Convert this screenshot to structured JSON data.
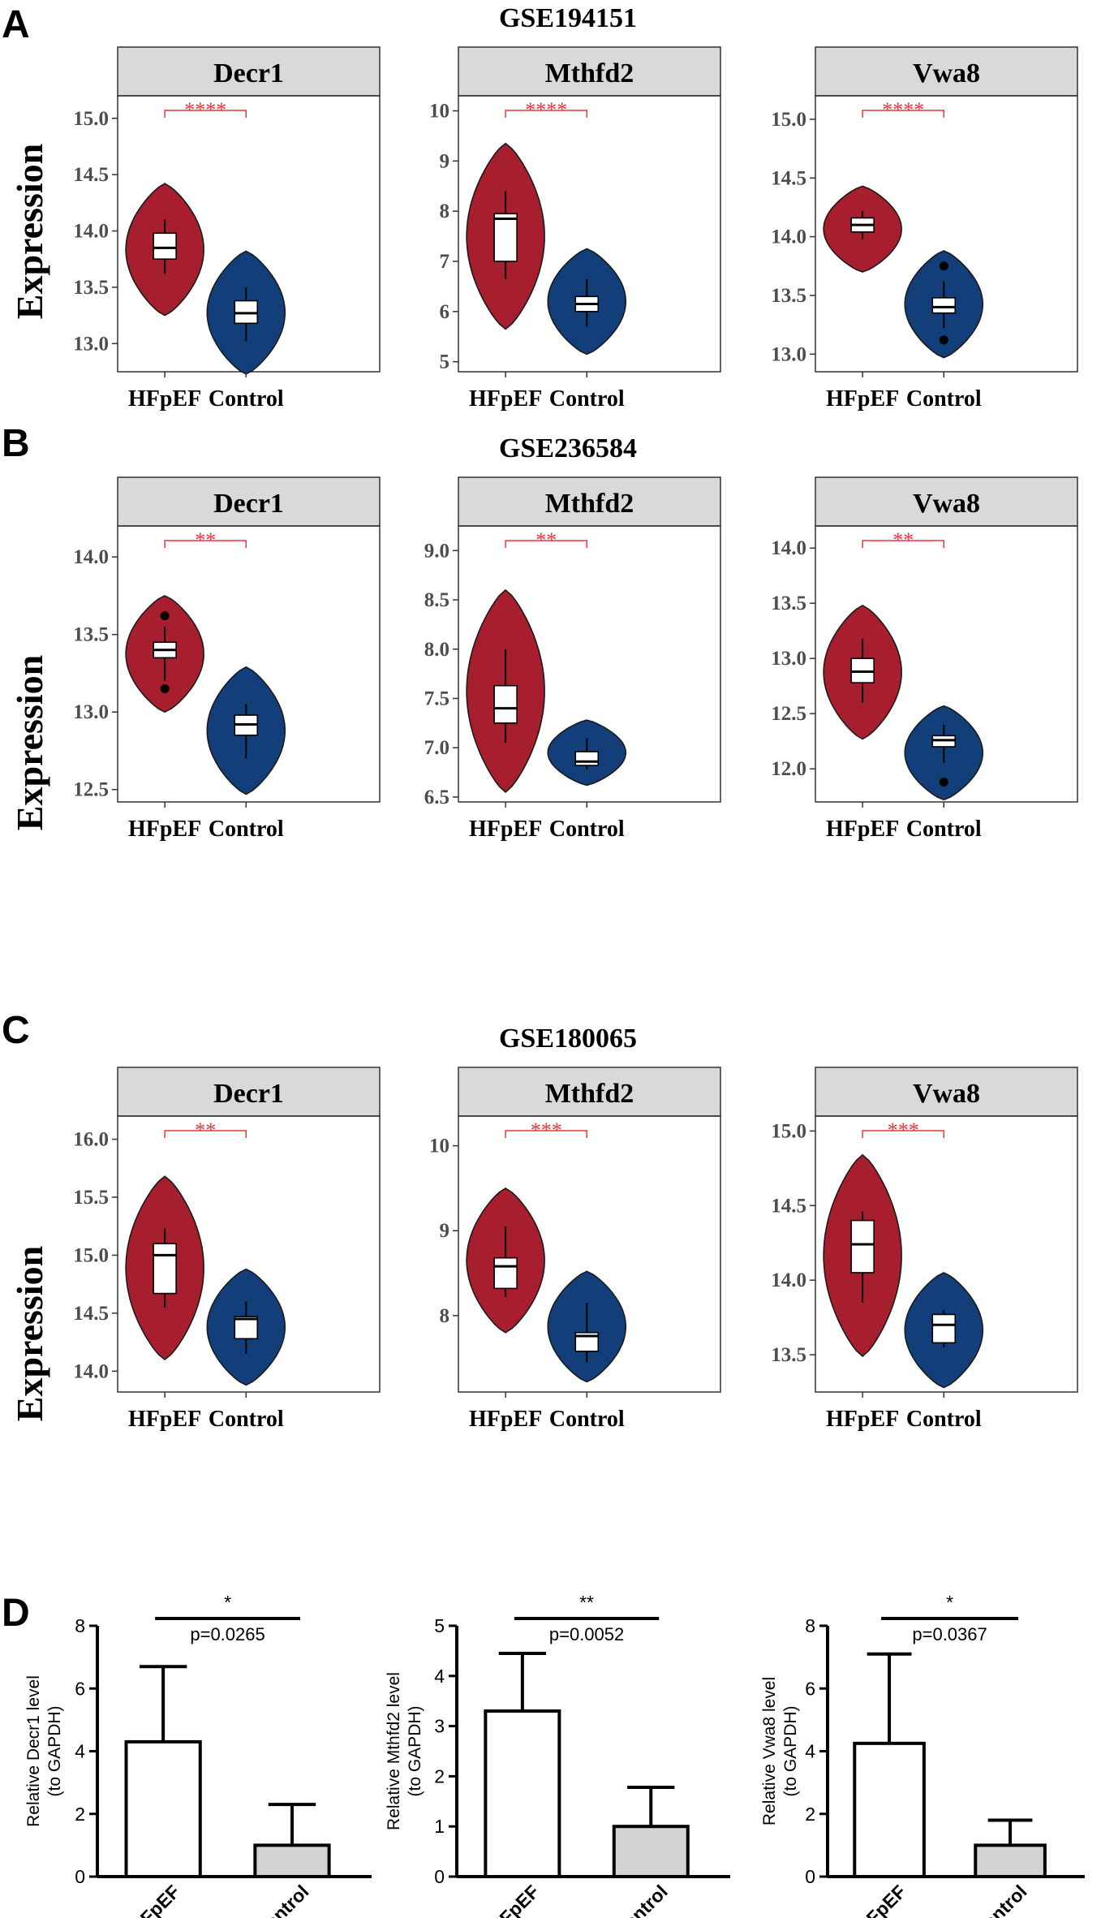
{
  "panel_letters": [
    "A",
    "B",
    "C",
    "D"
  ],
  "rows": [
    {
      "title": "GSE194151",
      "ylabel": "Expression"
    },
    {
      "title": "GSE236584",
      "ylabel": "Expression"
    },
    {
      "title": "GSE180065",
      "ylabel": "Expression"
    }
  ],
  "colors": {
    "hfpef": "#A71E2E",
    "control": "#123F7A",
    "sig": "#E8363A",
    "strip": "#D9D9D9",
    "bar_control": "#D3D3D3"
  },
  "chart_data": [
    {
      "type": "violin",
      "row": 0,
      "title": "Decr1",
      "categories": [
        "HFpEF",
        "Control"
      ],
      "ylim": [
        12.75,
        15.2
      ],
      "yticks": [
        13.0,
        13.5,
        14.0,
        14.5,
        15.0
      ],
      "ytick_labels": [
        "13.0",
        "13.5",
        "14.0",
        "14.5",
        "15.0"
      ],
      "significance": "****",
      "groups": [
        {
          "name": "HFpEF",
          "min": 13.25,
          "max": 14.42,
          "box": [
            13.62,
            13.75,
            13.85,
            13.98,
            14.1
          ],
          "outliers": []
        },
        {
          "name": "Control",
          "min": 12.73,
          "max": 13.82,
          "box": [
            13.02,
            13.18,
            13.27,
            13.38,
            13.5
          ],
          "outliers": []
        }
      ]
    },
    {
      "type": "violin",
      "row": 0,
      "title": "Mthfd2",
      "categories": [
        "HFpEF",
        "Control"
      ],
      "ylim": [
        4.8,
        10.3
      ],
      "yticks": [
        5,
        6,
        7,
        8,
        9,
        10
      ],
      "ytick_labels": [
        "5",
        "6",
        "7",
        "8",
        "9",
        "10"
      ],
      "significance": "****",
      "groups": [
        {
          "name": "HFpEF",
          "min": 5.65,
          "max": 9.35,
          "box": [
            6.65,
            7.0,
            7.85,
            7.95,
            8.4
          ],
          "outliers": []
        },
        {
          "name": "Control",
          "min": 5.15,
          "max": 7.25,
          "box": [
            5.7,
            6.0,
            6.15,
            6.3,
            6.65
          ],
          "outliers": []
        }
      ]
    },
    {
      "type": "violin",
      "row": 0,
      "title": "Vwa8",
      "categories": [
        "HFpEF",
        "Control"
      ],
      "ylim": [
        12.85,
        15.2
      ],
      "yticks": [
        13.0,
        13.5,
        14.0,
        14.5,
        15.0
      ],
      "ytick_labels": [
        "13.0",
        "13.5",
        "14.0",
        "14.5",
        "15.0"
      ],
      "significance": "****",
      "groups": [
        {
          "name": "HFpEF",
          "min": 13.7,
          "max": 14.43,
          "box": [
            13.98,
            14.04,
            14.1,
            14.16,
            14.22
          ],
          "outliers": []
        },
        {
          "name": "Control",
          "min": 12.97,
          "max": 13.88,
          "box": [
            13.22,
            13.35,
            13.4,
            13.48,
            13.62
          ],
          "outliers": [
            13.75,
            13.12
          ]
        }
      ]
    },
    {
      "type": "violin",
      "row": 1,
      "title": "Decr1",
      "categories": [
        "HFpEF",
        "Control"
      ],
      "ylim": [
        12.42,
        14.2
      ],
      "yticks": [
        12.5,
        13.0,
        13.5,
        14.0
      ],
      "ytick_labels": [
        "12.5",
        "13.0",
        "13.5",
        "14.0"
      ],
      "significance": "**",
      "groups": [
        {
          "name": "HFpEF",
          "min": 13.0,
          "max": 13.75,
          "box": [
            13.2,
            13.35,
            13.4,
            13.45,
            13.55
          ],
          "outliers": [
            13.62,
            13.15
          ]
        },
        {
          "name": "Control",
          "min": 12.47,
          "max": 13.29,
          "box": [
            12.7,
            12.85,
            12.92,
            12.98,
            13.05
          ],
          "outliers": []
        }
      ]
    },
    {
      "type": "violin",
      "row": 1,
      "title": "Mthfd2",
      "categories": [
        "HFpEF",
        "Control"
      ],
      "ylim": [
        6.45,
        9.25
      ],
      "yticks": [
        6.5,
        7.0,
        7.5,
        8.0,
        8.5,
        9.0
      ],
      "ytick_labels": [
        "6.5",
        "7.0",
        "7.5",
        "8.0",
        "8.5",
        "9.0"
      ],
      "significance": "**",
      "groups": [
        {
          "name": "HFpEF",
          "min": 6.55,
          "max": 8.6,
          "box": [
            7.05,
            7.25,
            7.4,
            7.63,
            8.0
          ],
          "outliers": []
        },
        {
          "name": "Control",
          "min": 6.62,
          "max": 7.28,
          "box": [
            6.78,
            6.82,
            6.86,
            6.96,
            7.1
          ],
          "outliers": []
        }
      ]
    },
    {
      "type": "violin",
      "row": 1,
      "title": "Vwa8",
      "categories": [
        "HFpEF",
        "Control"
      ],
      "ylim": [
        11.7,
        14.2
      ],
      "yticks": [
        12.0,
        12.5,
        13.0,
        13.5,
        14.0
      ],
      "ytick_labels": [
        "12.0",
        "12.5",
        "13.0",
        "13.5",
        "14.0"
      ],
      "significance": "**",
      "groups": [
        {
          "name": "HFpEF",
          "min": 12.27,
          "max": 13.48,
          "box": [
            12.6,
            12.78,
            12.88,
            13.0,
            13.18
          ],
          "outliers": []
        },
        {
          "name": "Control",
          "min": 11.72,
          "max": 12.57,
          "box": [
            12.05,
            12.2,
            12.26,
            12.3,
            12.4
          ],
          "outliers": [
            11.88
          ]
        }
      ]
    },
    {
      "type": "violin",
      "row": 2,
      "title": "Decr1",
      "categories": [
        "HFpEF",
        "Control"
      ],
      "ylim": [
        13.82,
        16.2
      ],
      "yticks": [
        14.0,
        14.5,
        15.0,
        15.5,
        16.0
      ],
      "ytick_labels": [
        "14.0",
        "14.5",
        "15.0",
        "15.5",
        "16.0"
      ],
      "significance": "**",
      "groups": [
        {
          "name": "HFpEF",
          "min": 14.1,
          "max": 15.68,
          "box": [
            14.55,
            14.67,
            15.0,
            15.1,
            15.23
          ],
          "outliers": []
        },
        {
          "name": "Control",
          "min": 13.88,
          "max": 14.88,
          "box": [
            14.15,
            14.28,
            14.45,
            14.47,
            14.6
          ],
          "outliers": []
        }
      ]
    },
    {
      "type": "violin",
      "row": 2,
      "title": "Mthfd2",
      "categories": [
        "HFpEF",
        "Control"
      ],
      "ylim": [
        7.1,
        10.35
      ],
      "yticks": [
        8,
        9,
        10
      ],
      "ytick_labels": [
        "8",
        "9",
        "10"
      ],
      "significance": "***",
      "groups": [
        {
          "name": "HFpEF",
          "min": 7.8,
          "max": 9.5,
          "box": [
            8.22,
            8.32,
            8.58,
            8.68,
            9.05
          ],
          "outliers": []
        },
        {
          "name": "Control",
          "min": 7.22,
          "max": 8.52,
          "box": [
            7.45,
            7.58,
            7.76,
            7.8,
            8.15
          ],
          "outliers": []
        }
      ]
    },
    {
      "type": "violin",
      "row": 2,
      "title": "Vwa8",
      "categories": [
        "HFpEF",
        "Control"
      ],
      "ylim": [
        13.25,
        15.1
      ],
      "yticks": [
        13.5,
        14.0,
        14.5,
        15.0
      ],
      "ytick_labels": [
        "13.5",
        "14.0",
        "14.5",
        "15.0"
      ],
      "significance": "***",
      "groups": [
        {
          "name": "HFpEF",
          "min": 13.49,
          "max": 14.84,
          "box": [
            13.85,
            14.05,
            14.24,
            14.4,
            14.46
          ],
          "outliers": []
        },
        {
          "name": "Control",
          "min": 13.28,
          "max": 14.05,
          "box": [
            13.55,
            13.58,
            13.7,
            13.77,
            13.8
          ],
          "outliers": []
        }
      ]
    },
    {
      "type": "bar",
      "panel": "D",
      "categories": [
        "HFpEF",
        "Control"
      ],
      "values": [
        4.3,
        1.0
      ],
      "errors": [
        2.4,
        1.3
      ],
      "ylim": [
        0,
        8
      ],
      "yticks": [
        0,
        2,
        4,
        6,
        8
      ],
      "ylabel": [
        "Relative Decr1 level",
        "(to GAPDH)"
      ],
      "significance": "*",
      "pvalue": "p=0.0265"
    },
    {
      "type": "bar",
      "panel": "D",
      "categories": [
        "HFpEF",
        "Control"
      ],
      "values": [
        3.3,
        1.0
      ],
      "errors": [
        1.15,
        0.78
      ],
      "ylim": [
        0,
        5
      ],
      "yticks": [
        0,
        1,
        2,
        3,
        4,
        5
      ],
      "ylabel": [
        "Relative Mthfd2 level",
        "(to GAPDH)"
      ],
      "significance": "**",
      "pvalue": "p=0.0052"
    },
    {
      "type": "bar",
      "panel": "D",
      "categories": [
        "HFpEF",
        "Control"
      ],
      "values": [
        4.25,
        1.0
      ],
      "errors": [
        2.85,
        0.8
      ],
      "ylim": [
        0,
        8
      ],
      "yticks": [
        0,
        2,
        4,
        6,
        8
      ],
      "ylabel": [
        "Relative Vwa8 level",
        "(to GAPDH)"
      ],
      "significance": "*",
      "pvalue": "p=0.0367"
    }
  ]
}
